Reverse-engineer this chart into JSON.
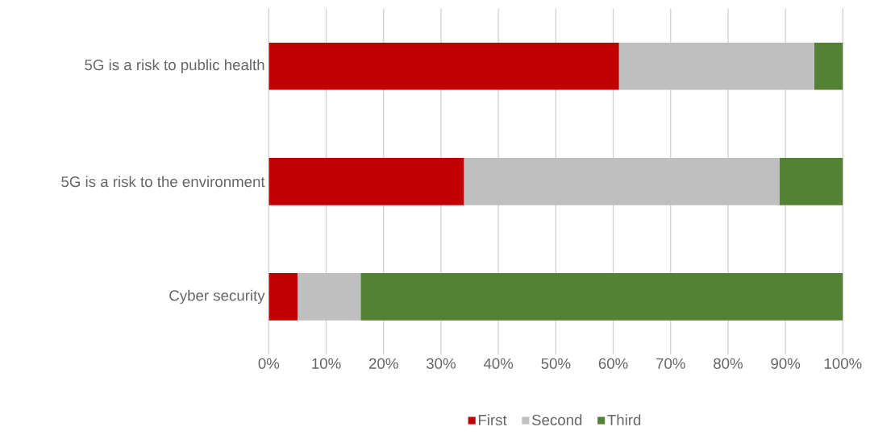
{
  "chart_data": {
    "type": "bar",
    "orientation": "horizontal",
    "stacked": true,
    "categories": [
      "5G is a risk to public health",
      "5G is a risk to the environment",
      "Cyber security"
    ],
    "series": [
      {
        "name": "First",
        "color": "#c00000",
        "values": [
          61,
          34,
          5
        ]
      },
      {
        "name": "Second",
        "color": "#bfbfbf",
        "values": [
          34,
          55,
          11
        ]
      },
      {
        "name": "Third",
        "color": "#548235",
        "values": [
          5,
          11,
          84
        ]
      }
    ],
    "xlim": [
      0,
      100
    ],
    "xticks": [
      {
        "value": 0,
        "label": "0%"
      },
      {
        "value": 10,
        "label": "10%"
      },
      {
        "value": 20,
        "label": "20%"
      },
      {
        "value": 30,
        "label": "30%"
      },
      {
        "value": 40,
        "label": "40%"
      },
      {
        "value": 50,
        "label": "50%"
      },
      {
        "value": 60,
        "label": "60%"
      },
      {
        "value": 70,
        "label": "70%"
      },
      {
        "value": 80,
        "label": "80%"
      },
      {
        "value": 90,
        "label": "90%"
      },
      {
        "value": 100,
        "label": "100%"
      }
    ],
    "grid": "x",
    "legend": "bottom"
  }
}
